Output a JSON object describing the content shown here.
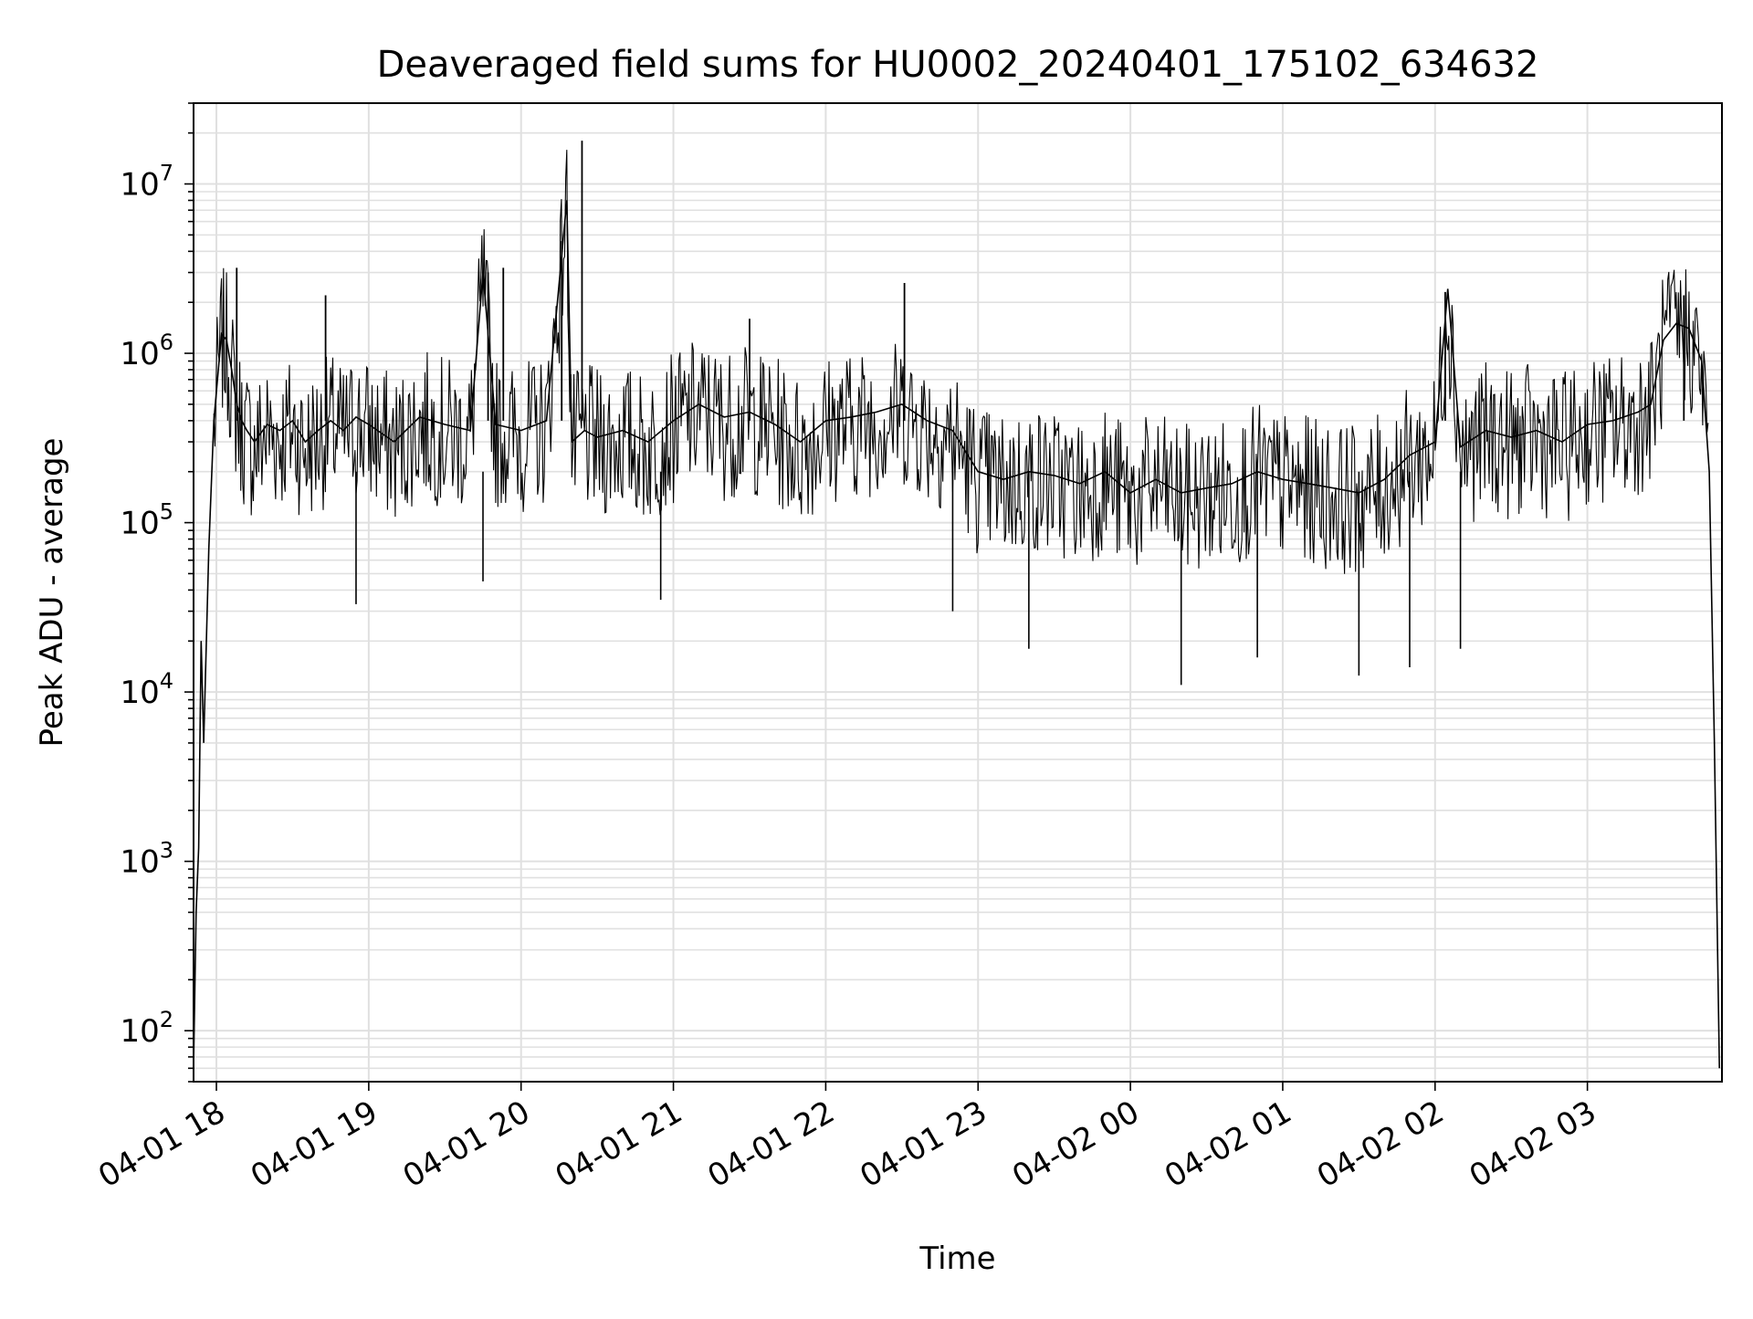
{
  "chart_data": {
    "type": "line",
    "title": "Deaveraged field sums for HU0002_20240401_175102_634632",
    "xlabel": "Time",
    "ylabel": "Peak ADU - average",
    "yscale": "log",
    "ylim": [
      50,
      30000000
    ],
    "xlim": [
      "2024-04-01 17:51",
      "2024-04-02 03:53"
    ],
    "grid": true,
    "grid_color": "#e0e0e0",
    "line_color": "#000000",
    "x_tick_labels": [
      "04-01 18",
      "04-01 19",
      "04-01 20",
      "04-01 21",
      "04-01 22",
      "04-01 23",
      "04-02 00",
      "04-02 01",
      "04-02 02",
      "04-02 03"
    ],
    "y_tick_labels": [
      {
        "base": "10",
        "exp": "2"
      },
      {
        "base": "10",
        "exp": "3"
      },
      {
        "base": "10",
        "exp": "4"
      },
      {
        "base": "10",
        "exp": "5"
      },
      {
        "base": "10",
        "exp": "6"
      },
      {
        "base": "10",
        "exp": "7"
      }
    ],
    "series": [
      {
        "x": [
          "2024-04-01 17:51",
          "2024-04-01 17:52",
          "2024-04-01 17:53",
          "2024-04-01 17:54",
          "2024-04-01 17:55",
          "2024-04-01 17:57",
          "2024-04-01 17:59",
          "2024-04-01 18:02",
          "2024-04-01 18:04",
          "2024-04-01 18:06",
          "2024-04-01 18:08",
          "2024-04-01 18:10",
          "2024-04-01 18:12",
          "2024-04-01 18:15",
          "2024-04-01 18:20",
          "2024-04-01 18:25",
          "2024-04-01 18:30",
          "2024-04-01 18:35",
          "2024-04-01 18:40",
          "2024-04-01 18:45",
          "2024-04-01 18:50",
          "2024-04-01 18:55",
          "2024-04-01 19:00",
          "2024-04-01 19:10",
          "2024-04-01 19:20",
          "2024-04-01 19:30",
          "2024-04-01 19:40",
          "2024-04-01 19:45",
          "2024-04-01 19:50",
          "2024-04-01 20:00",
          "2024-04-01 20:10",
          "2024-04-01 20:18",
          "2024-04-01 20:20",
          "2024-04-01 20:25",
          "2024-04-01 20:30",
          "2024-04-01 20:40",
          "2024-04-01 20:50",
          "2024-04-01 21:00",
          "2024-04-01 21:10",
          "2024-04-01 21:20",
          "2024-04-01 21:30",
          "2024-04-01 21:40",
          "2024-04-01 21:50",
          "2024-04-01 22:00",
          "2024-04-01 22:10",
          "2024-04-01 22:20",
          "2024-04-01 22:30",
          "2024-04-01 22:40",
          "2024-04-01 22:50",
          "2024-04-01 23:00",
          "2024-04-01 23:10",
          "2024-04-01 23:20",
          "2024-04-01 23:30",
          "2024-04-01 23:40",
          "2024-04-01 23:50",
          "2024-04-02 00:00",
          "2024-04-02 00:10",
          "2024-04-02 00:20",
          "2024-04-02 00:30",
          "2024-04-02 00:40",
          "2024-04-02 00:50",
          "2024-04-02 01:00",
          "2024-04-02 01:10",
          "2024-04-02 01:20",
          "2024-04-02 01:30",
          "2024-04-02 01:40",
          "2024-04-02 01:50",
          "2024-04-02 02:00",
          "2024-04-02 02:05",
          "2024-04-02 02:10",
          "2024-04-02 02:20",
          "2024-04-02 02:30",
          "2024-04-02 02:40",
          "2024-04-02 02:50",
          "2024-04-02 03:00",
          "2024-04-02 03:10",
          "2024-04-02 03:20",
          "2024-04-02 03:25",
          "2024-04-02 03:30",
          "2024-04-02 03:35",
          "2024-04-02 03:40",
          "2024-04-02 03:45",
          "2024-04-02 03:48",
          "2024-04-02 03:50",
          "2024-04-02 03:52"
        ],
        "y": [
          60,
          500,
          1200,
          20000,
          5000,
          70000,
          400000,
          1300000,
          1200000,
          800000,
          500000,
          400000,
          350000,
          300000,
          380000,
          350000,
          400000,
          300000,
          350000,
          400000,
          350000,
          420000,
          380000,
          300000,
          420000,
          380000,
          350000,
          3000000,
          380000,
          350000,
          400000,
          8000000,
          300000,
          350000,
          320000,
          350000,
          300000,
          400000,
          500000,
          420000,
          450000,
          380000,
          300000,
          400000,
          420000,
          450000,
          500000,
          400000,
          350000,
          200000,
          180000,
          200000,
          190000,
          170000,
          200000,
          150000,
          180000,
          150000,
          160000,
          170000,
          200000,
          180000,
          170000,
          160000,
          150000,
          180000,
          250000,
          300000,
          2400000,
          280000,
          350000,
          320000,
          350000,
          300000,
          380000,
          400000,
          450000,
          500000,
          1200000,
          1500000,
          1400000,
          900000,
          200000,
          5000,
          60
        ]
      }
    ],
    "spikes": [
      {
        "x": "2024-04-01 18:08",
        "y": 3200000
      },
      {
        "x": "2024-04-01 18:43",
        "y": 2200000
      },
      {
        "x": "2024-04-01 19:47",
        "y": 3000000
      },
      {
        "x": "2024-04-01 19:53",
        "y": 3200000
      },
      {
        "x": "2024-04-01 20:16",
        "y": 4600000
      },
      {
        "x": "2024-04-01 20:24",
        "y": 18000000
      },
      {
        "x": "2024-04-01 21:30",
        "y": 1600000
      },
      {
        "x": "2024-04-01 22:31",
        "y": 2600000
      },
      {
        "x": "2024-04-02 02:04",
        "y": 2300000
      },
      {
        "x": "2024-04-02 03:38",
        "y": 2200000
      }
    ],
    "dips": [
      {
        "x": "2024-04-01 18:55",
        "y": 33000
      },
      {
        "x": "2024-04-01 19:45",
        "y": 45000
      },
      {
        "x": "2024-04-01 20:55",
        "y": 35000
      },
      {
        "x": "2024-04-01 22:50",
        "y": 30000
      },
      {
        "x": "2024-04-01 23:20",
        "y": 18000
      },
      {
        "x": "2024-04-02 00:20",
        "y": 11000
      },
      {
        "x": "2024-04-02 00:50",
        "y": 16000
      },
      {
        "x": "2024-04-02 01:30",
        "y": 12500
      },
      {
        "x": "2024-04-02 01:50",
        "y": 14000
      },
      {
        "x": "2024-04-02 02:10",
        "y": 18000
      }
    ]
  }
}
